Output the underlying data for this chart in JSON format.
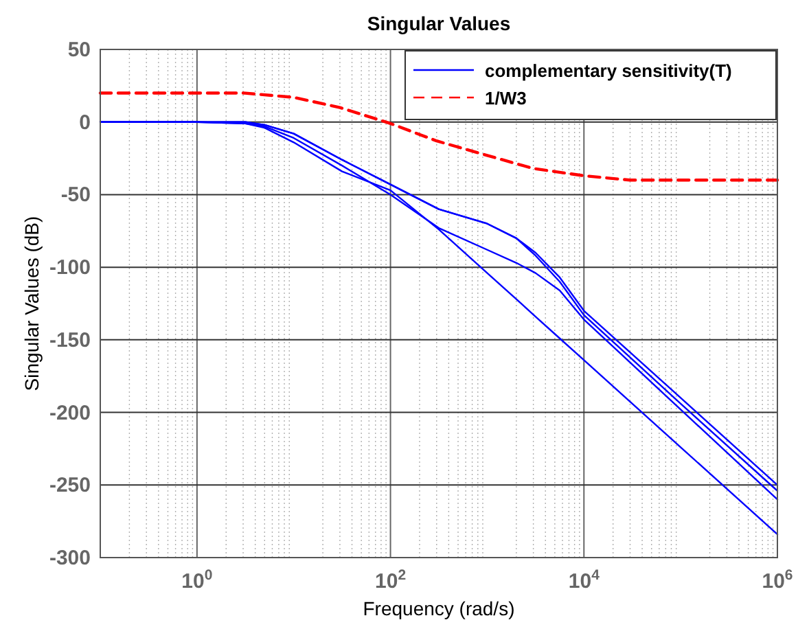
{
  "chart_data": {
    "type": "line",
    "title": "Singular Values",
    "xlabel": "Frequency (rad/s)",
    "ylabel": "Singular Values (dB)",
    "log": "x",
    "xlim": [
      0.1,
      1000000
    ],
    "ylim": [
      -300,
      50
    ],
    "xticks": [
      {
        "value": 1,
        "label": "10$^{0}$"
      },
      {
        "value": 100,
        "label": "10$^{2}$"
      },
      {
        "value": 10000,
        "label": "10$^{4}$"
      },
      {
        "value": 1000000,
        "label": "10$^{6}$"
      }
    ],
    "yticks": [
      -300,
      -250,
      -200,
      -150,
      -100,
      -50,
      0,
      50
    ],
    "grid": true,
    "legend": "top right",
    "marker": "none",
    "x": [
      0.1,
      1,
      3.16,
      5,
      10,
      31.6,
      100,
      316,
      1000,
      2000,
      3160,
      5620,
      10000,
      100000,
      1000000
    ],
    "series": [
      {
        "name": "complementary sensitivity(T)",
        "color": "#0000ff",
        "values": [
          0,
          0,
          0,
          -2,
          -8,
          -26,
          -43,
          -60,
          -70,
          -80,
          -90,
          -107,
          -130,
          -190,
          -250
        ]
      },
      {
        "color": "#0000ff",
        "values": [
          0,
          0,
          0,
          -2,
          -8,
          -26,
          -43,
          -60,
          -70,
          -80,
          -92,
          -110,
          -133,
          -194,
          -254
        ]
      },
      {
        "color": "#0000ff",
        "values": [
          0,
          0,
          -1,
          -3,
          -11,
          -30,
          -50,
          -73,
          -88,
          -97,
          -104,
          -116,
          -136,
          -198,
          -260
        ]
      },
      {
        "color": "#0000ff",
        "values": [
          0,
          0,
          -1,
          -4,
          -14,
          -34,
          -47,
          -74,
          -104,
          -122,
          -134,
          -149,
          -164,
          -224,
          -284
        ]
      },
      {
        "name": "1/W3",
        "color": "#ff0000",
        "line_style": "dashed",
        "x": [
          0.1,
          1,
          3,
          10,
          30,
          100,
          300,
          1000,
          3000,
          10000,
          30000,
          100000,
          1000000
        ],
        "values": [
          20,
          20,
          20,
          17,
          10,
          -1,
          -13,
          -23,
          -32,
          -37,
          -40,
          -40,
          -40
        ]
      }
    ]
  }
}
